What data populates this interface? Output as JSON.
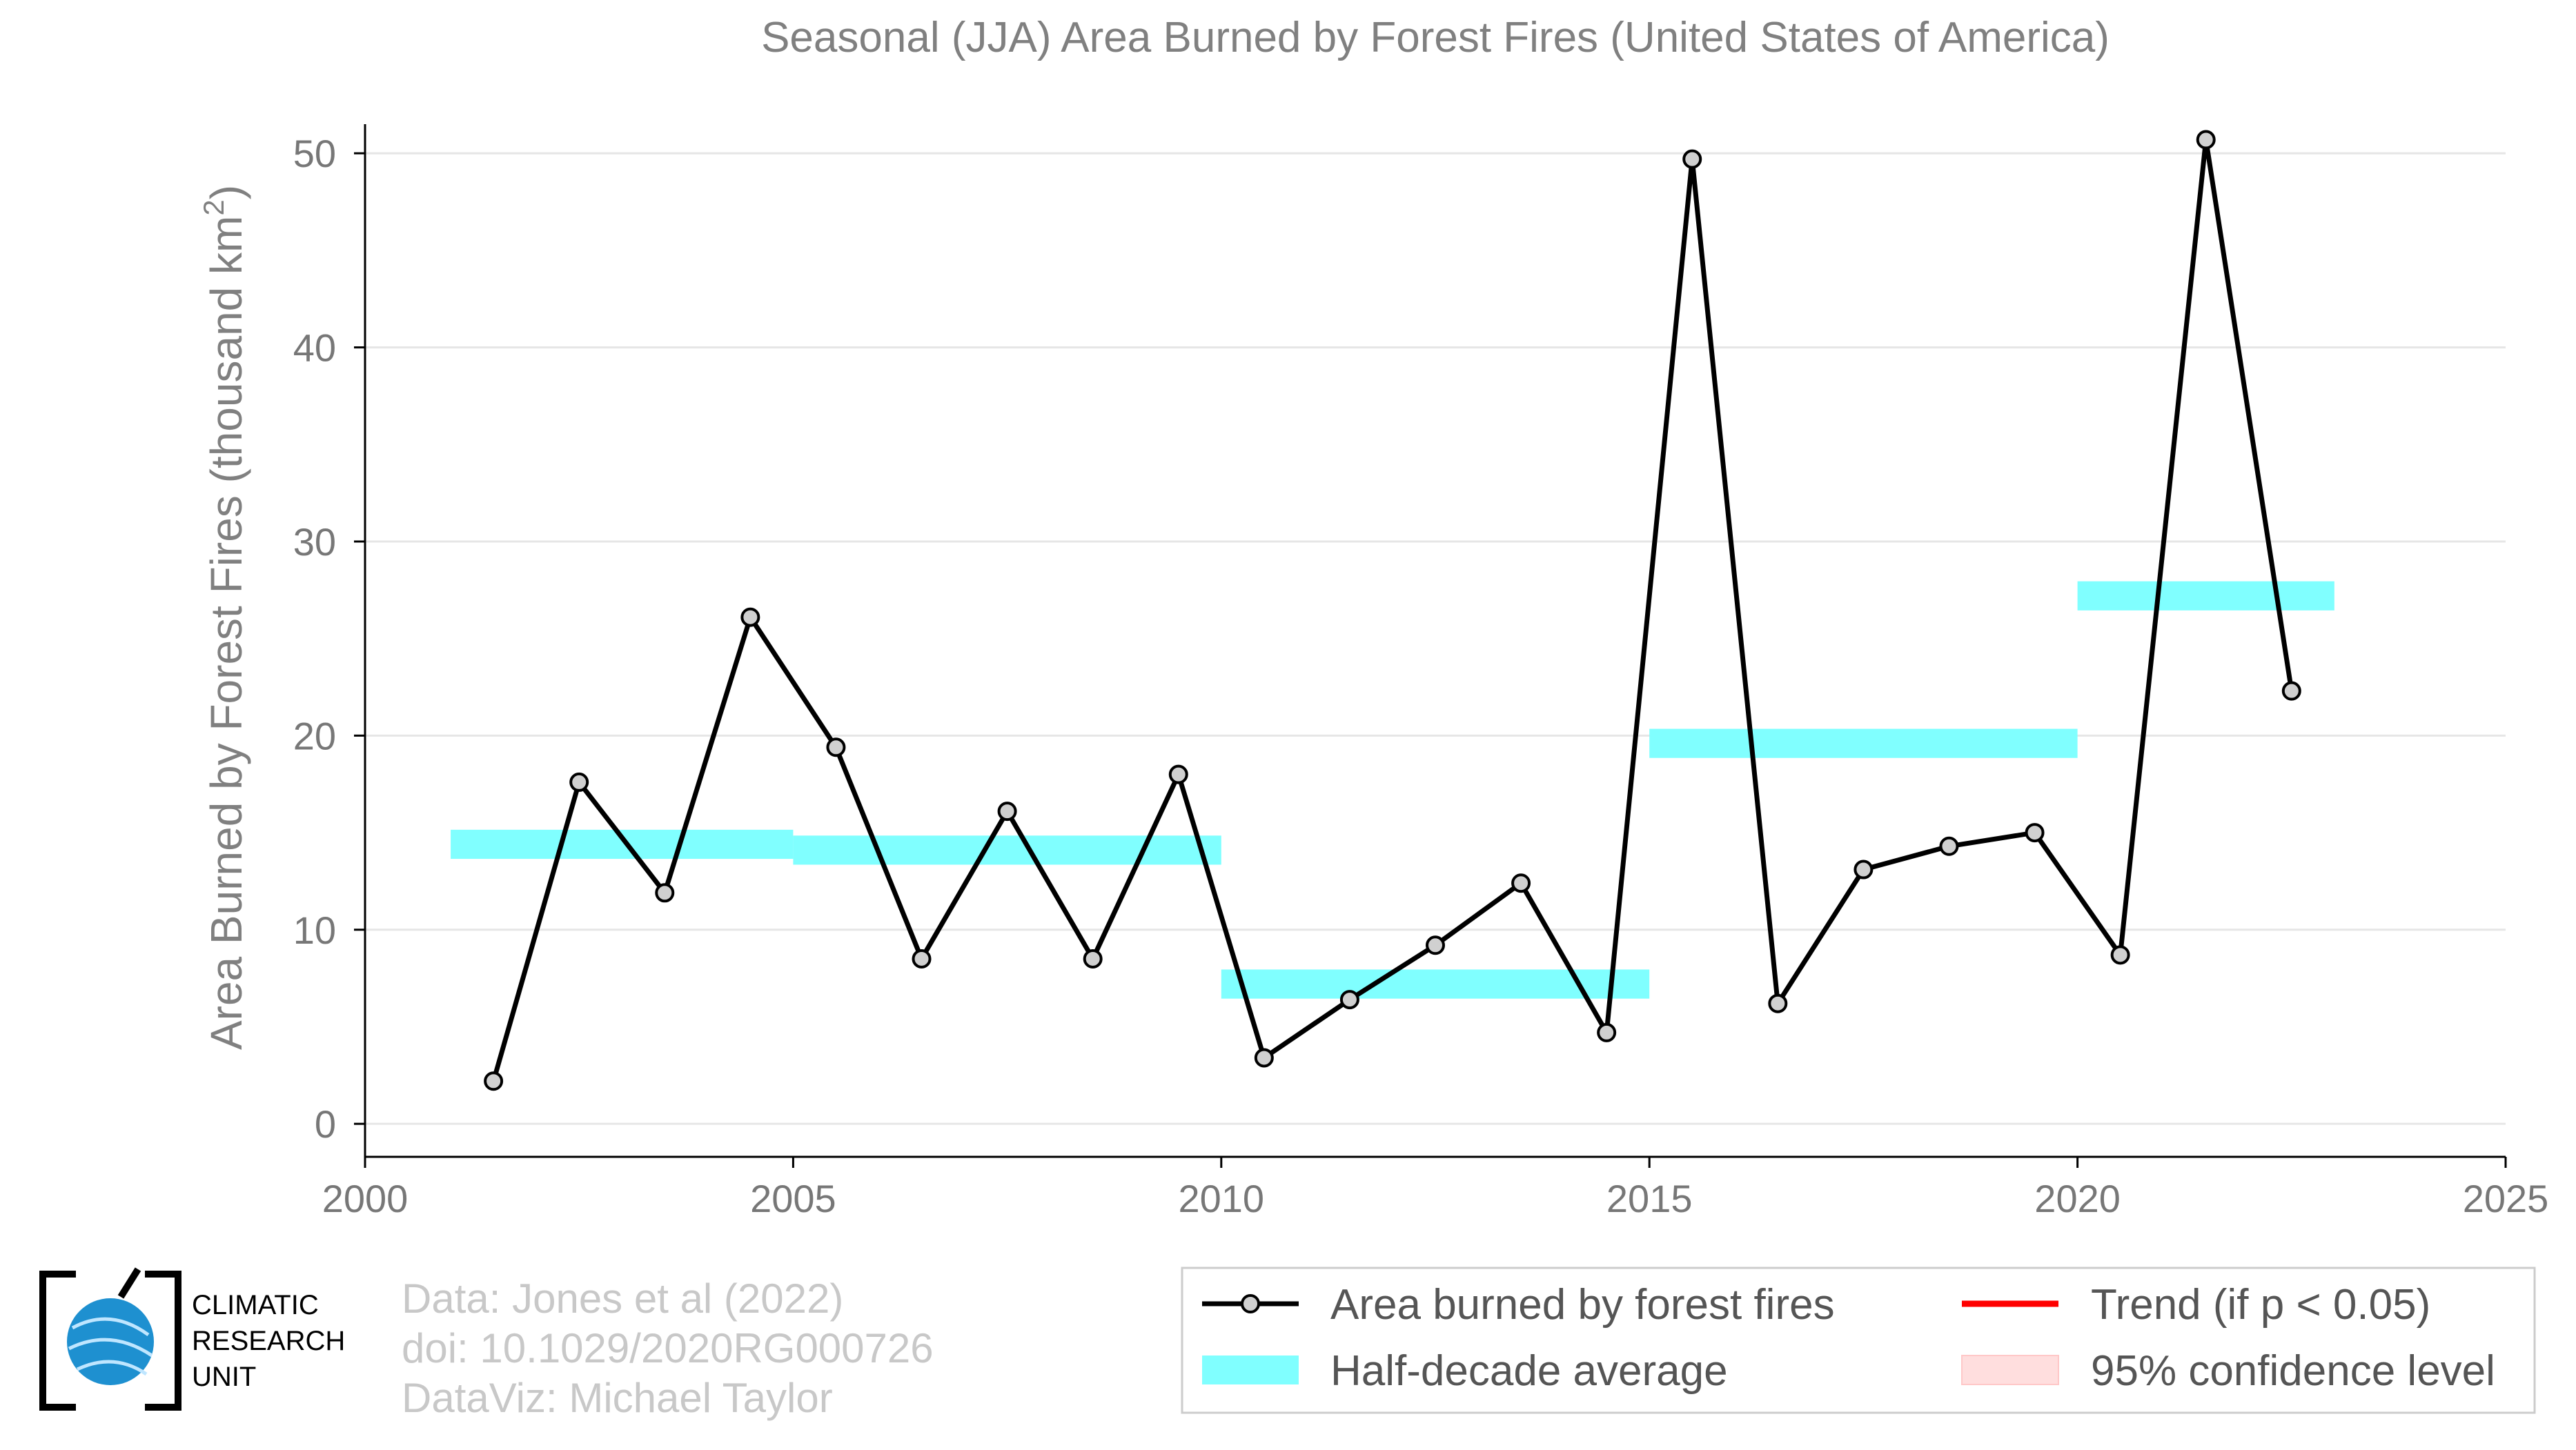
{
  "chart_data": {
    "type": "line",
    "title": "Seasonal (JJA) Area Burned by Forest Fires (United States of America)",
    "ylabel_main": "Area Burned by Forest Fires (thousand km",
    "ylabel_sup": "2",
    "ylabel_close": ")",
    "xlim": [
      2000,
      2025
    ],
    "ylim": [
      -1.7,
      51.5
    ],
    "xticks": [
      2000,
      2005,
      2010,
      2015,
      2020,
      2025
    ],
    "yticks": [
      0,
      10,
      20,
      30,
      40,
      50
    ],
    "grid": "horizontal",
    "series": [
      {
        "name": "Area burned by forest fires",
        "color": "#000000",
        "x": [
          2001.5,
          2002.5,
          2003.5,
          2004.5,
          2005.5,
          2006.5,
          2007.5,
          2008.5,
          2009.5,
          2010.5,
          2011.5,
          2012.5,
          2013.5,
          2014.5,
          2015.5,
          2016.5,
          2017.5,
          2018.5,
          2019.5,
          2020.5,
          2021.5,
          2022.5
        ],
        "values": [
          2.2,
          17.6,
          11.9,
          26.1,
          19.4,
          8.5,
          16.1,
          8.5,
          18.0,
          3.4,
          6.4,
          9.2,
          12.4,
          4.7,
          49.7,
          6.2,
          13.1,
          14.3,
          15.0,
          8.7,
          50.7,
          22.3
        ]
      },
      {
        "name": "Half-decade average",
        "color": "#80ffff",
        "segments": [
          {
            "x0": 2001,
            "x1": 2005,
            "value": 14.4
          },
          {
            "x0": 2005,
            "x1": 2010,
            "value": 14.1
          },
          {
            "x0": 2010,
            "x1": 2015,
            "value": 7.2
          },
          {
            "x0": 2015,
            "x1": 2020,
            "value": 19.6
          },
          {
            "x0": 2020,
            "x1": 2023,
            "value": 27.2
          }
        ]
      }
    ],
    "legend": {
      "placement": "bottom-right",
      "entries": [
        {
          "label": "Area burned by forest fires",
          "style": "line-marker",
          "color": "#000000"
        },
        {
          "label": "Half-decade average",
          "style": "band",
          "color": "#80ffff"
        },
        {
          "label": "Trend (if p < 0.05)",
          "style": "line",
          "color": "#ff0000"
        },
        {
          "label": "95% confidence level",
          "style": "band",
          "color": "#ffdede"
        }
      ]
    }
  },
  "credits": {
    "line1": "Data: Jones et al (2022)",
    "line2": "doi: 10.1029/2020RG000726",
    "line3": "DataViz: Michael Taylor"
  },
  "logo": {
    "line1": "CLIMATIC",
    "line2": "RESEARCH",
    "line3": "UNIT",
    "globe_color": "#1e90d0"
  }
}
